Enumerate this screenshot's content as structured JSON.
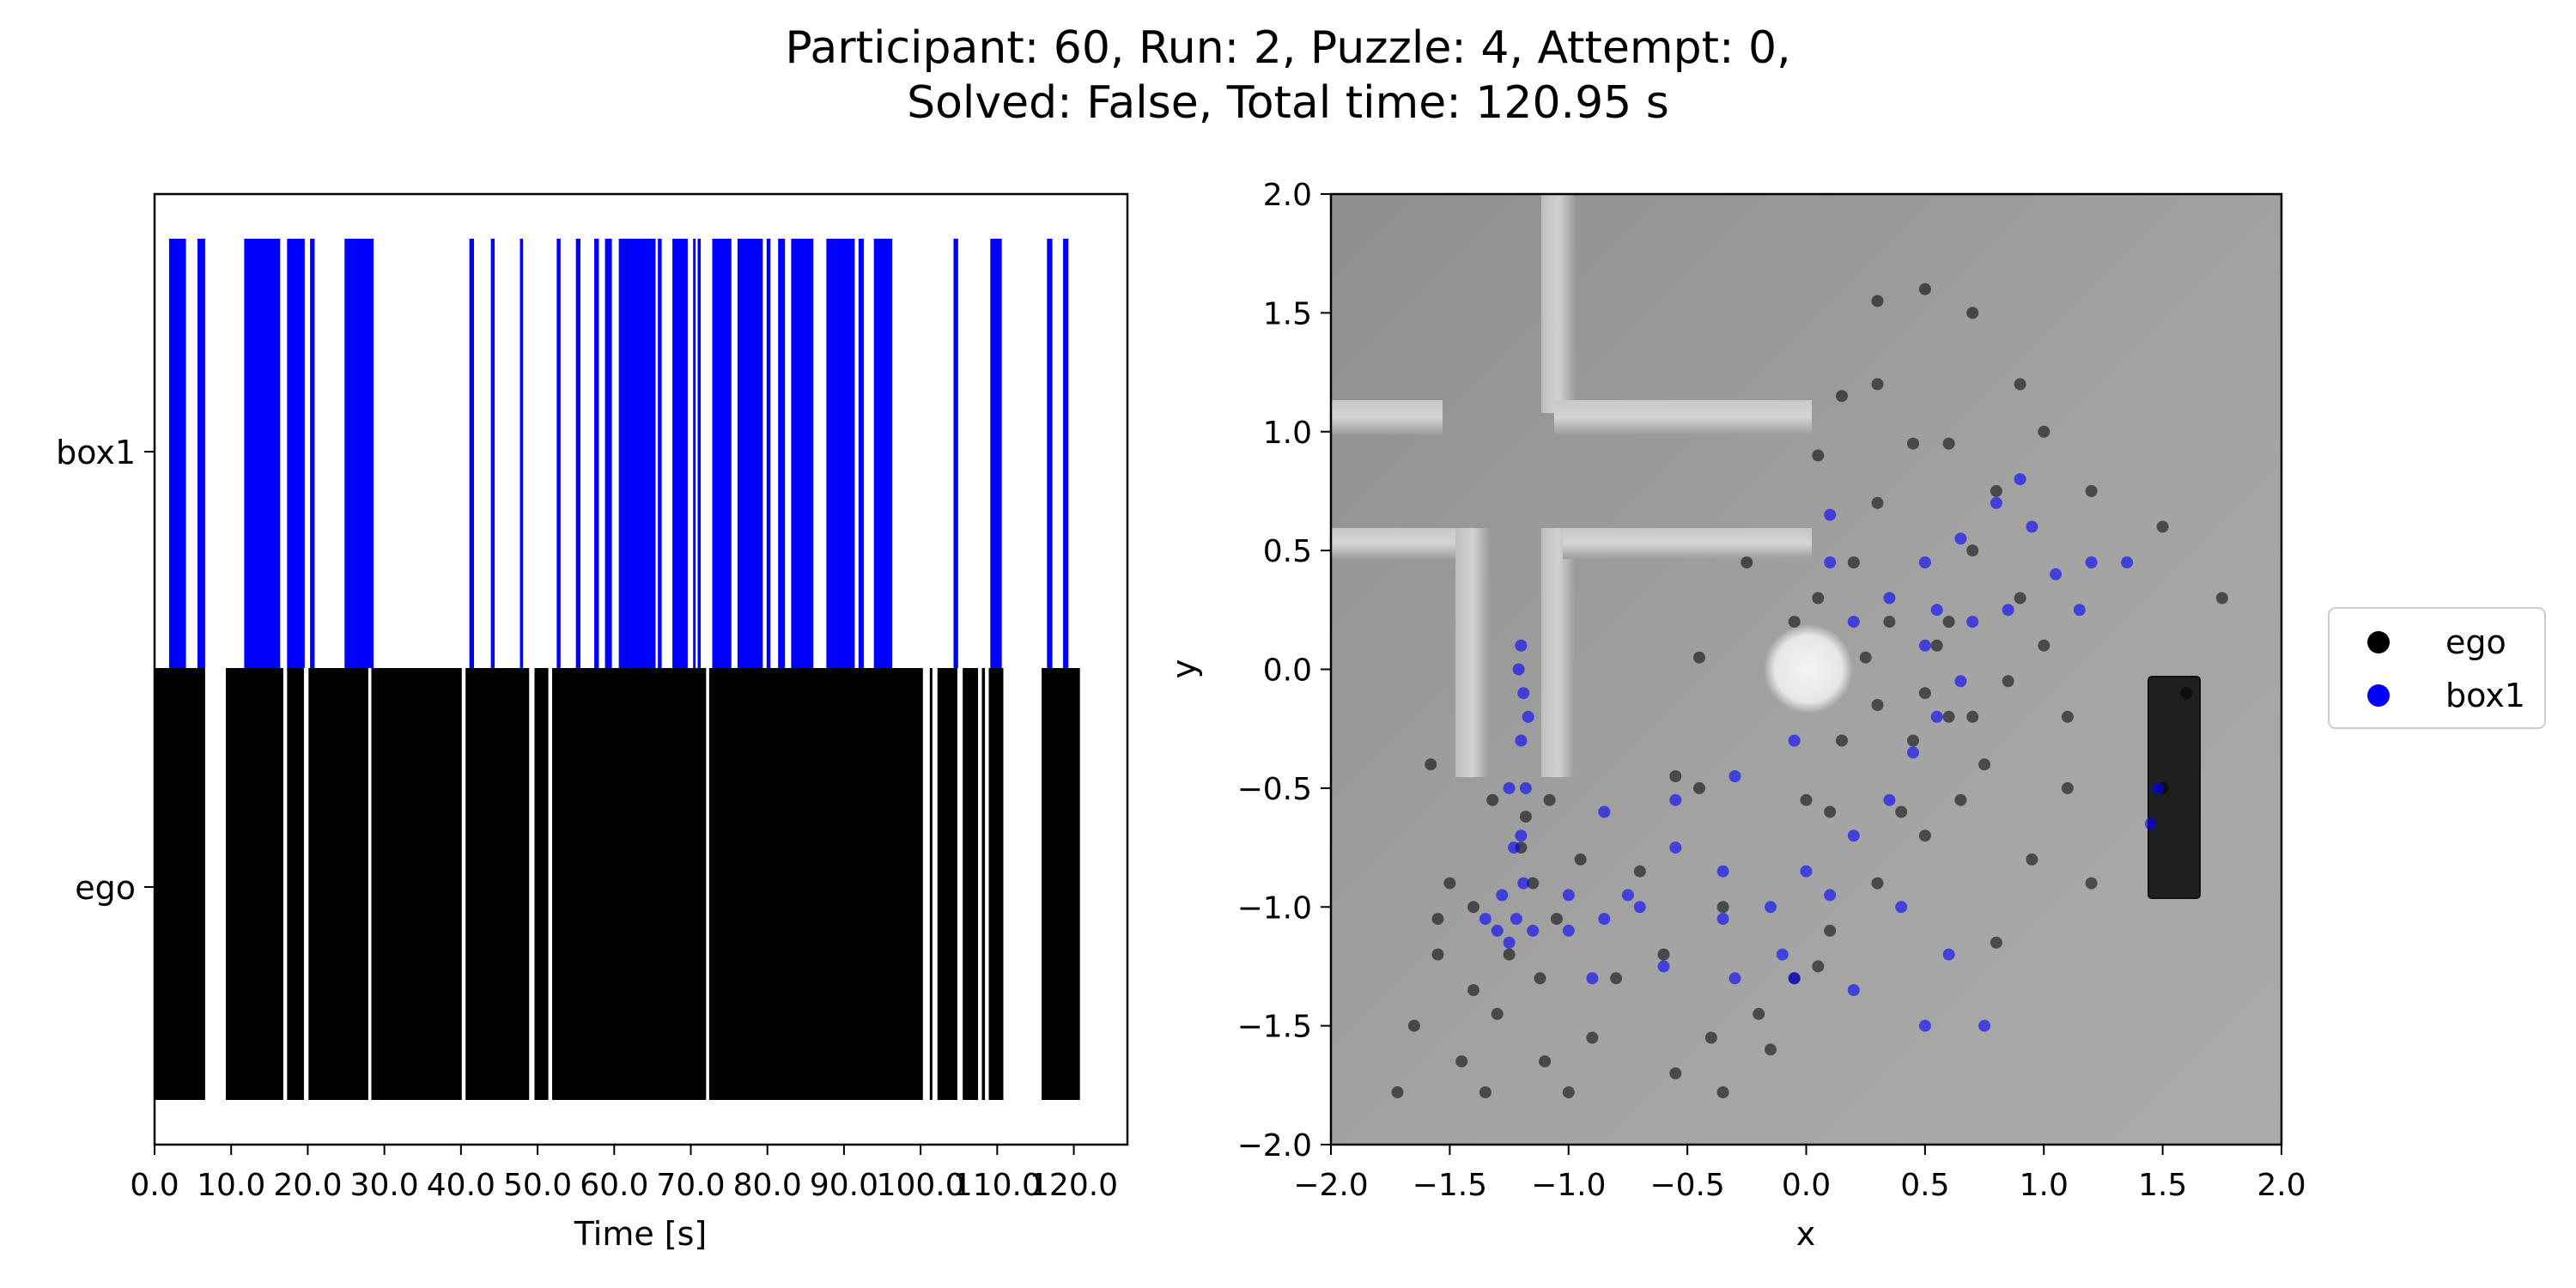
{
  "title_lines": [
    "Participant: 60, Run: 2, Puzzle: 4, Attempt: 0,",
    "Solved: False, Total time: 120.95 s"
  ],
  "colors": {
    "ego": "#000000",
    "box1": "#0000ff"
  },
  "chart_data": [
    {
      "type": "bar",
      "subtype": "event-timeline",
      "xlabel": "Time [s]",
      "xlim": [
        0.0,
        127.0
      ],
      "xticks": [
        0,
        10,
        20,
        30,
        40,
        50,
        60,
        70,
        80,
        90,
        100,
        110,
        120
      ],
      "xtick_labels": [
        "0.0",
        "10.0",
        "20.0",
        "30.0",
        "40.0",
        "50.0",
        "60.0",
        "70.0",
        "80.0",
        "90.0",
        "100.0",
        "110.0",
        "120.0"
      ],
      "categories": [
        "ego",
        "box1"
      ],
      "series": [
        {
          "name": "ego",
          "color": "#000000",
          "intervals": [
            [
              0.0,
              6.6
            ],
            [
              9.3,
              16.8
            ],
            [
              17.3,
              19.5
            ],
            [
              20.1,
              27.9
            ],
            [
              28.3,
              40.1
            ],
            [
              40.6,
              48.9
            ],
            [
              49.6,
              51.4
            ],
            [
              51.9,
              72.0
            ],
            [
              72.4,
              100.3
            ],
            [
              101.2,
              101.5
            ],
            [
              102.2,
              104.8
            ],
            [
              105.5,
              107.5
            ],
            [
              108.0,
              108.4
            ],
            [
              108.9,
              110.8
            ],
            [
              115.8,
              120.8
            ]
          ]
        },
        {
          "name": "box1",
          "color": "#0000ff",
          "intervals": [
            [
              1.9,
              4.1
            ],
            [
              5.6,
              6.6
            ],
            [
              11.7,
              16.4
            ],
            [
              17.3,
              19.6
            ],
            [
              20.3,
              20.9
            ],
            [
              24.8,
              28.6
            ],
            [
              41.1,
              41.7
            ],
            [
              43.9,
              44.4
            ],
            [
              47.7,
              48.1
            ],
            [
              52.5,
              53.0
            ],
            [
              55.0,
              55.6
            ],
            [
              57.4,
              58.0
            ],
            [
              58.8,
              59.7
            ],
            [
              60.6,
              65.4
            ],
            [
              65.7,
              66.2
            ],
            [
              67.6,
              69.6
            ],
            [
              70.3,
              70.6
            ],
            [
              70.9,
              71.3
            ],
            [
              72.8,
              75.3
            ],
            [
              76.1,
              79.4
            ],
            [
              79.9,
              80.4
            ],
            [
              81.4,
              82.3
            ],
            [
              83.1,
              86.0
            ],
            [
              87.7,
              91.4
            ],
            [
              91.9,
              92.6
            ],
            [
              93.9,
              96.3
            ],
            [
              104.3,
              104.9
            ],
            [
              109.1,
              110.6
            ],
            [
              116.5,
              117.2
            ],
            [
              118.6,
              119.3
            ]
          ]
        }
      ]
    },
    {
      "type": "scatter",
      "xlabel": "x",
      "ylabel": "y",
      "xlim": [
        -2.0,
        2.0
      ],
      "ylim": [
        -2.0,
        2.0
      ],
      "xticks": [
        "−2.0",
        "−1.5",
        "−1.0",
        "−0.5",
        "0.0",
        "0.5",
        "1.0",
        "1.5",
        "2.0"
      ],
      "yticks": [
        "−2.0",
        "−1.5",
        "−1.0",
        "−0.5",
        "0.0",
        "0.5",
        "1.0",
        "1.5",
        "2.0"
      ],
      "legend": {
        "placement": "outside-right",
        "entries": [
          "ego",
          "box1"
        ]
      },
      "background": "gray top-down render of the puzzle room",
      "series": [
        {
          "name": "ego",
          "color": "#000000",
          "points": [
            [
              -1.72,
              -1.78
            ],
            [
              -1.65,
              -1.5
            ],
            [
              -1.55,
              -1.2
            ],
            [
              -1.5,
              -0.9
            ],
            [
              -1.58,
              -0.4
            ],
            [
              -1.45,
              -1.65
            ],
            [
              -1.35,
              -1.78
            ],
            [
              -1.3,
              -1.45
            ],
            [
              -1.25,
              -1.2
            ],
            [
              -1.2,
              -0.75
            ],
            [
              -1.18,
              -0.62
            ],
            [
              -1.15,
              -0.9
            ],
            [
              -1.12,
              -1.3
            ],
            [
              -1.1,
              -1.65
            ],
            [
              -1.0,
              -1.78
            ],
            [
              -0.9,
              -1.55
            ],
            [
              -0.8,
              -1.3
            ],
            [
              -0.6,
              -1.2
            ],
            [
              -0.4,
              -1.55
            ],
            [
              -0.35,
              -1.78
            ],
            [
              -0.2,
              -1.45
            ],
            [
              -0.05,
              -1.3
            ],
            [
              0.1,
              -1.1
            ],
            [
              0.3,
              -0.9
            ],
            [
              0.4,
              -0.6
            ],
            [
              0.45,
              -0.3
            ],
            [
              0.5,
              -0.1
            ],
            [
              0.55,
              0.1
            ],
            [
              0.6,
              -0.2
            ],
            [
              0.7,
              -0.2
            ],
            [
              0.75,
              -0.4
            ],
            [
              0.65,
              -0.55
            ],
            [
              0.5,
              -0.7
            ],
            [
              0.6,
              0.2
            ],
            [
              0.7,
              0.5
            ],
            [
              0.8,
              0.75
            ],
            [
              0.6,
              0.95
            ],
            [
              0.45,
              0.95
            ],
            [
              0.3,
              0.7
            ],
            [
              0.2,
              0.45
            ],
            [
              0.05,
              0.3
            ],
            [
              -0.05,
              0.2
            ],
            [
              0.0,
              -0.55
            ],
            [
              0.15,
              -0.3
            ],
            [
              0.3,
              -0.15
            ],
            [
              0.9,
              0.3
            ],
            [
              1.0,
              0.1
            ],
            [
              1.1,
              -0.2
            ],
            [
              1.1,
              -0.5
            ],
            [
              0.95,
              -0.8
            ],
            [
              0.8,
              -1.15
            ],
            [
              1.2,
              -0.9
            ],
            [
              1.5,
              -0.5
            ],
            [
              1.6,
              -0.1
            ],
            [
              1.75,
              0.3
            ],
            [
              1.5,
              0.6
            ],
            [
              1.2,
              0.75
            ],
            [
              1.0,
              1.0
            ],
            [
              0.9,
              1.2
            ],
            [
              0.7,
              1.5
            ],
            [
              0.5,
              1.6
            ],
            [
              0.3,
              1.55
            ],
            [
              0.3,
              1.2
            ],
            [
              0.15,
              1.15
            ],
            [
              0.05,
              0.9
            ],
            [
              -0.25,
              0.45
            ],
            [
              -0.45,
              0.05
            ],
            [
              -0.55,
              -0.45
            ],
            [
              -0.7,
              -0.85
            ],
            [
              -0.35,
              -1.0
            ],
            [
              -0.45,
              -0.5
            ],
            [
              0.1,
              -0.6
            ],
            [
              0.25,
              0.05
            ],
            [
              0.35,
              0.2
            ],
            [
              0.85,
              -0.05
            ],
            [
              -1.4,
              -1.0
            ],
            [
              -1.32,
              -0.55
            ],
            [
              -1.08,
              -0.55
            ],
            [
              -1.05,
              -1.05
            ],
            [
              -0.95,
              -0.8
            ],
            [
              -1.55,
              -1.05
            ],
            [
              -1.4,
              -1.35
            ],
            [
              -0.55,
              -1.7
            ],
            [
              -0.15,
              -1.6
            ],
            [
              0.05,
              -1.25
            ]
          ]
        },
        {
          "name": "box1",
          "color": "#0000ff",
          "points": [
            [
              -1.2,
              0.1
            ],
            [
              -1.19,
              -0.1
            ],
            [
              -1.2,
              -0.3
            ],
            [
              -1.18,
              -0.5
            ],
            [
              -1.2,
              -0.7
            ],
            [
              -1.19,
              -0.9
            ],
            [
              -1.22,
              -1.05
            ],
            [
              -1.28,
              -0.95
            ],
            [
              -1.35,
              -1.05
            ],
            [
              -1.25,
              -1.15
            ],
            [
              -1.15,
              -1.1
            ],
            [
              -1.0,
              -1.1
            ],
            [
              -0.85,
              -1.05
            ],
            [
              -0.7,
              -1.0
            ],
            [
              -0.85,
              -0.6
            ],
            [
              -0.55,
              -0.75
            ],
            [
              -0.35,
              -0.85
            ],
            [
              -0.15,
              -1.0
            ],
            [
              0.0,
              -0.85
            ],
            [
              0.2,
              -0.7
            ],
            [
              0.35,
              -0.55
            ],
            [
              0.45,
              -0.35
            ],
            [
              0.55,
              -0.2
            ],
            [
              0.65,
              -0.05
            ],
            [
              0.7,
              0.2
            ],
            [
              0.55,
              0.25
            ],
            [
              0.5,
              0.45
            ],
            [
              0.65,
              0.55
            ],
            [
              0.8,
              0.7
            ],
            [
              0.9,
              0.8
            ],
            [
              0.95,
              0.6
            ],
            [
              1.05,
              0.4
            ],
            [
              1.15,
              0.25
            ],
            [
              1.2,
              0.45
            ],
            [
              1.35,
              0.45
            ],
            [
              0.85,
              0.25
            ],
            [
              0.5,
              0.1
            ],
            [
              0.35,
              0.3
            ],
            [
              0.1,
              0.45
            ],
            [
              0.1,
              0.65
            ],
            [
              0.2,
              0.2
            ],
            [
              -0.05,
              -0.3
            ],
            [
              -0.3,
              -0.45
            ],
            [
              -0.55,
              -0.55
            ],
            [
              -0.75,
              -0.95
            ],
            [
              -1.0,
              -0.95
            ],
            [
              -0.9,
              -1.3
            ],
            [
              -0.6,
              -1.25
            ],
            [
              -0.35,
              -1.05
            ],
            [
              -0.1,
              -1.2
            ],
            [
              0.1,
              -0.95
            ],
            [
              0.4,
              -1.0
            ],
            [
              0.6,
              -1.2
            ],
            [
              0.75,
              -1.5
            ],
            [
              0.5,
              -1.5
            ],
            [
              0.2,
              -1.35
            ],
            [
              -0.05,
              -1.3
            ],
            [
              -0.3,
              -1.3
            ],
            [
              1.48,
              -0.5
            ],
            [
              1.45,
              -0.65
            ],
            [
              -1.25,
              -0.5
            ],
            [
              -1.17,
              -0.2
            ],
            [
              -1.21,
              0.0
            ],
            [
              -1.23,
              -0.75
            ],
            [
              -1.3,
              -1.1
            ]
          ]
        }
      ]
    }
  ]
}
